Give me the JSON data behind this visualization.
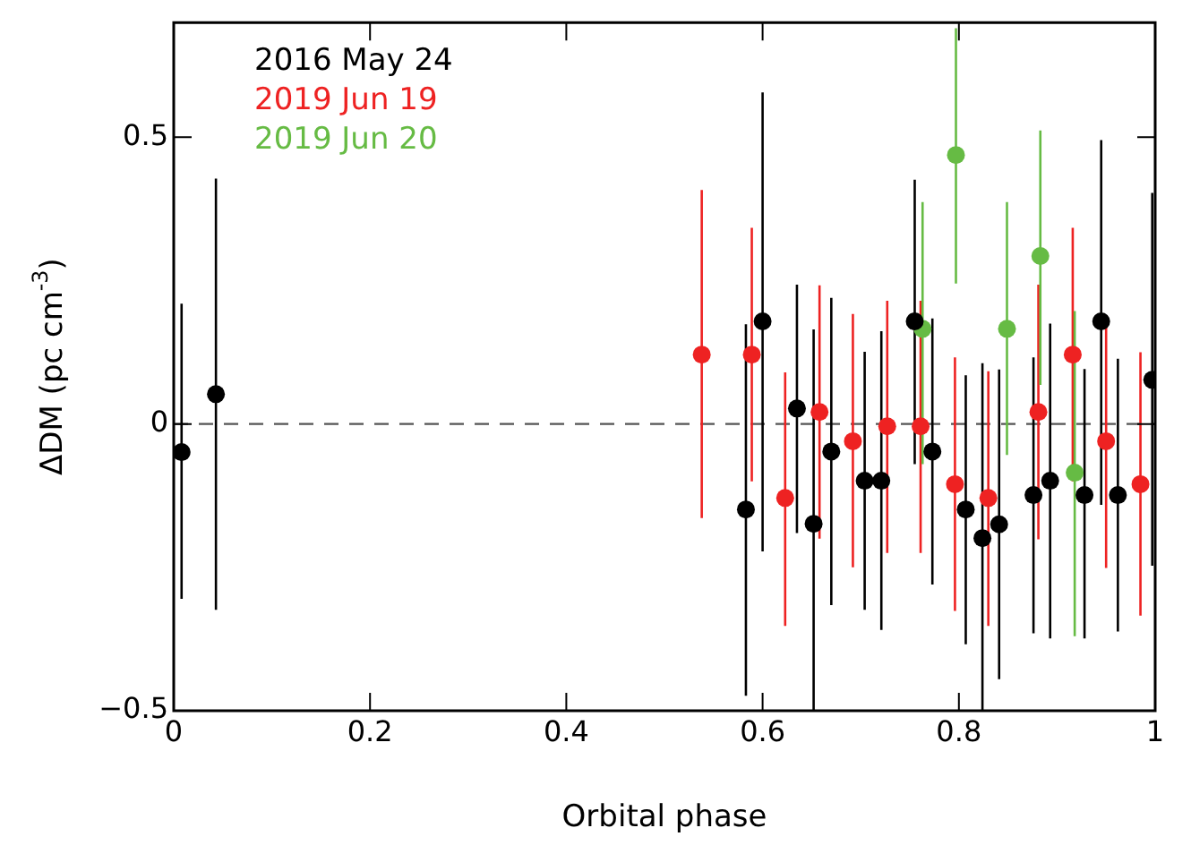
{
  "chart_data": {
    "type": "scatter",
    "xlabel": "Orbital phase",
    "ylabel": "ΔDM (pc cm$^{-3}$)",
    "xlim": [
      0,
      1
    ],
    "xticks": [
      0,
      0.2,
      0.4,
      0.6,
      0.8,
      1
    ],
    "ylim": [
      -0.5,
      0.7
    ],
    "yticks": [
      {
        "value": -0.5,
        "label": "−0.5"
      },
      0,
      0.5
    ],
    "grid": false,
    "legend": "top left",
    "marker": "circle",
    "ref_lines": [
      {
        "axis": "y",
        "value": 0,
        "label": null,
        "color": "#555555",
        "line_style": "dashed"
      }
    ],
    "series": [
      {
        "name": "2016 May 24",
        "color": "#000000",
        "x": [
          0.008,
          0.043,
          0.583,
          0.6,
          0.635,
          0.652,
          0.67,
          0.704,
          0.721,
          0.755,
          0.773,
          0.807,
          0.824,
          0.841,
          0.876,
          0.893,
          0.928,
          0.945,
          0.962,
          0.997
        ],
        "values": [
          -0.049,
          0.052,
          -0.149,
          0.179,
          0.027,
          -0.174,
          -0.048,
          -0.099,
          -0.099,
          0.179,
          -0.048,
          -0.149,
          -0.199,
          -0.175,
          -0.124,
          -0.099,
          -0.124,
          0.179,
          -0.124,
          0.077
        ],
        "errors": [
          [
            -0.305,
            0.21
          ],
          [
            -0.324,
            0.428
          ],
          [
            -0.474,
            0.174
          ],
          [
            -0.222,
            0.578
          ],
          [
            -0.19,
            0.243
          ],
          [
            -0.5,
            0.165
          ],
          [
            -0.316,
            0.22
          ],
          [
            -0.324,
            0.126
          ],
          [
            -0.359,
            0.162
          ],
          [
            -0.07,
            0.426
          ],
          [
            -0.28,
            0.184
          ],
          [
            -0.384,
            0.085
          ],
          [
            -0.5,
            0.106
          ],
          [
            -0.445,
            0.095
          ],
          [
            -0.365,
            0.116
          ],
          [
            -0.374,
            0.175
          ],
          [
            -0.374,
            0.096
          ],
          [
            -0.141,
            0.495
          ],
          [
            -0.362,
            0.114
          ],
          [
            -0.247,
            0.403
          ]
        ]
      },
      {
        "name": "2019 Jun 19",
        "color": "#ee2222",
        "x": [
          0.538,
          0.589,
          0.623,
          0.658,
          0.692,
          0.727,
          0.761,
          0.796,
          0.83,
          0.881,
          0.916,
          0.95,
          0.985
        ],
        "values": [
          0.121,
          0.121,
          -0.129,
          0.021,
          -0.03,
          -0.004,
          -0.004,
          -0.105,
          -0.129,
          0.021,
          0.121,
          -0.03,
          -0.105
        ],
        "errors": [
          [
            -0.164,
            0.408
          ],
          [
            -0.1,
            0.342
          ],
          [
            -0.352,
            0.09
          ],
          [
            -0.2,
            0.242
          ],
          [
            -0.25,
            0.192
          ],
          [
            -0.225,
            0.215
          ],
          [
            -0.225,
            0.215
          ],
          [
            -0.326,
            0.116
          ],
          [
            -0.352,
            0.092
          ],
          [
            -0.201,
            0.243
          ],
          [
            -0.1,
            0.342
          ],
          [
            -0.251,
            0.19
          ],
          [
            -0.334,
            0.125
          ]
        ]
      },
      {
        "name": "2019 Jun 20",
        "color": "#66bb44",
        "x": [
          0.763,
          0.797,
          0.849,
          0.883,
          0.918
        ],
        "values": [
          0.166,
          0.469,
          0.166,
          0.293,
          -0.085
        ],
        "errors": [
          [
            -0.07,
            0.387
          ],
          [
            0.245,
            0.69
          ],
          [
            -0.054,
            0.387
          ],
          [
            0.068,
            0.512
          ],
          [
            -0.37,
            0.197
          ]
        ]
      }
    ]
  }
}
